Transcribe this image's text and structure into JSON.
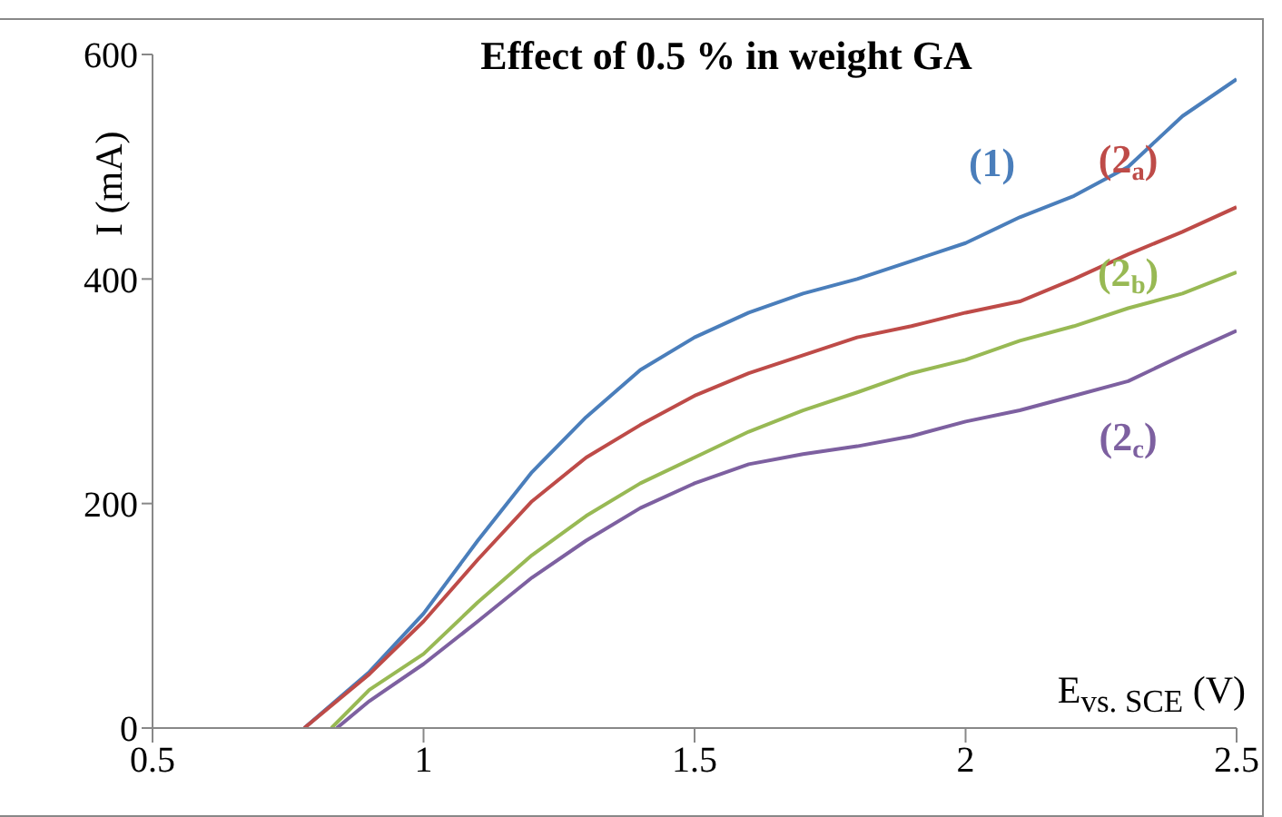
{
  "chart_data": {
    "type": "line",
    "title": "Effect of 0.5 % in weight GA",
    "xlabel": "E$_{vs. SCE}$ (V)",
    "ylabel": "I (mA)",
    "xlim": [
      0.5,
      2.5
    ],
    "xticks": [
      0.5,
      1,
      1.5,
      2,
      2.5
    ],
    "ylim": [
      0,
      600
    ],
    "yticks": [
      0,
      200,
      400,
      600
    ],
    "grid": false,
    "legend": false,
    "marker": "none",
    "line_style": "solid",
    "series": [
      {
        "name": "(1)",
        "color": "#4a7ebb",
        "x": [
          0.78,
          0.9,
          1.0,
          1.1,
          1.2,
          1.3,
          1.4,
          1.5,
          1.6,
          1.7,
          1.8,
          1.9,
          2.0,
          2.1,
          2.2,
          2.3,
          2.4,
          2.5
        ],
        "values": [
          0,
          50,
          102,
          167,
          228,
          277,
          319,
          348,
          370,
          387,
          400,
          416,
          432,
          455,
          474,
          500,
          545,
          578
        ]
      },
      {
        "name": "(2$_{a}$)",
        "color": "#be4b48",
        "x": [
          0.78,
          0.9,
          1.0,
          1.1,
          1.2,
          1.3,
          1.4,
          1.5,
          1.6,
          1.7,
          1.8,
          1.9,
          2.0,
          2.1,
          2.2,
          2.3,
          2.4,
          2.5
        ],
        "values": [
          0,
          48,
          95,
          150,
          202,
          241,
          270,
          296,
          316,
          332,
          348,
          358,
          370,
          380,
          400,
          422,
          442,
          464
        ]
      },
      {
        "name": "(2$_{b}$)",
        "color": "#98b954",
        "x": [
          0.83,
          0.9,
          1.0,
          1.1,
          1.2,
          1.3,
          1.4,
          1.5,
          1.6,
          1.7,
          1.8,
          1.9,
          2.0,
          2.1,
          2.2,
          2.3,
          2.4,
          2.5
        ],
        "values": [
          0,
          34,
          66,
          112,
          154,
          189,
          218,
          241,
          264,
          283,
          299,
          316,
          328,
          345,
          358,
          374,
          387,
          406
        ]
      },
      {
        "name": "(2$_{c}$)",
        "color": "#7d60a0",
        "x": [
          0.84,
          0.9,
          1.0,
          1.1,
          1.2,
          1.3,
          1.4,
          1.5,
          1.6,
          1.7,
          1.8,
          1.9,
          2.0,
          2.1,
          2.2,
          2.3,
          2.4,
          2.5
        ],
        "values": [
          0,
          24,
          57,
          95,
          134,
          167,
          196,
          218,
          235,
          244,
          251,
          260,
          273,
          283,
          296,
          309,
          332,
          354
        ]
      }
    ]
  }
}
